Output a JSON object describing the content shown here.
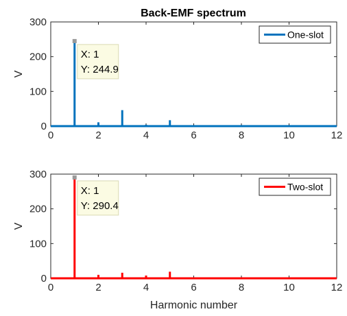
{
  "figure_title": "Back-EMF spectrum",
  "chart_data": [
    {
      "type": "stem",
      "title": "Back-EMF spectrum",
      "xlabel": "",
      "ylabel": "V",
      "xlim": [
        0,
        12
      ],
      "ylim": [
        0,
        300
      ],
      "xticks": [
        "0",
        "2",
        "4",
        "6",
        "8",
        "10",
        "12"
      ],
      "yticks": [
        "0",
        "100",
        "200",
        "300"
      ],
      "grid": false,
      "legend_position": "top-right",
      "series": [
        {
          "name": "One-slot",
          "color": "#0072BD",
          "x": [
            1,
            2,
            3,
            4,
            5,
            7,
            9,
            11
          ],
          "values": [
            244.9,
            11,
            46,
            4,
            17,
            2,
            2,
            1.5
          ]
        }
      ],
      "datatip": {
        "x_label": "X: 1",
        "y_label": "Y: 244.9",
        "x": 1,
        "y": 244.9
      }
    },
    {
      "type": "stem",
      "title": "",
      "xlabel": "Harmonic number",
      "ylabel": "V",
      "xlim": [
        0,
        12
      ],
      "ylim": [
        0,
        300
      ],
      "xticks": [
        "0",
        "2",
        "4",
        "6",
        "8",
        "10",
        "12"
      ],
      "yticks": [
        "0",
        "100",
        "200",
        "300"
      ],
      "grid": false,
      "legend_position": "top-right",
      "series": [
        {
          "name": "Two-slot",
          "color": "#FF0000",
          "x": [
            1,
            2,
            3,
            4,
            5,
            7,
            9,
            11
          ],
          "values": [
            290.4,
            10,
            16,
            8,
            19,
            2,
            2,
            1.5
          ]
        }
      ],
      "datatip": {
        "x_label": "X: 1",
        "y_label": "Y: 290.4",
        "x": 1,
        "y": 290.4
      }
    }
  ]
}
